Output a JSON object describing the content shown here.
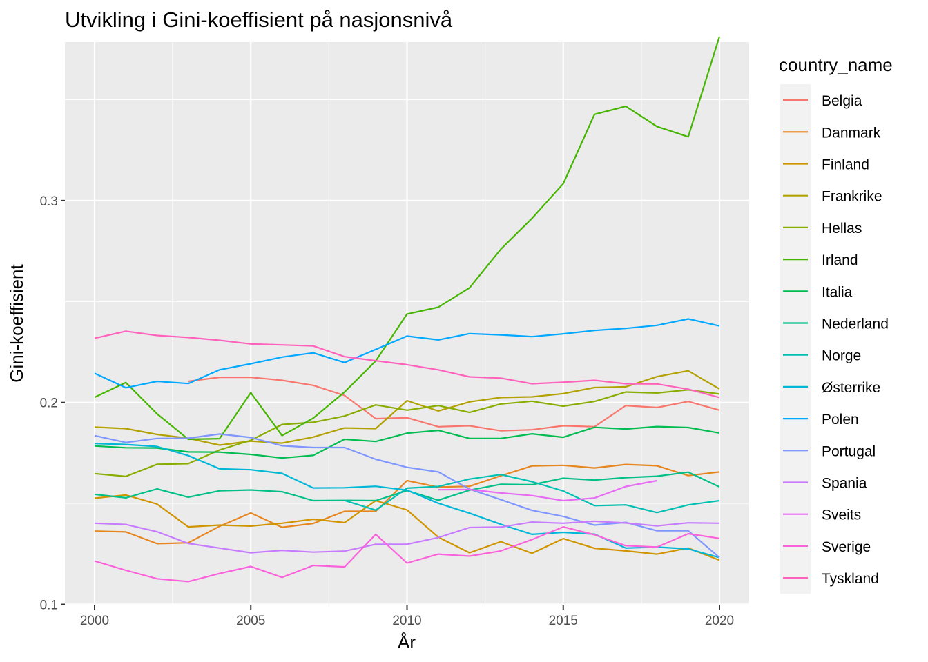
{
  "chart_data": {
    "type": "line",
    "title": "Utvikling i Gini-koeffisient på nasjonsnivå",
    "xlabel": "År",
    "ylabel": "Gini-koeffisient",
    "xlim": [
      1999.05,
      2020.95
    ],
    "ylim": [
      0.0995,
      0.3785
    ],
    "xticks": [
      2000,
      2005,
      2010,
      2015,
      2020
    ],
    "xtick_labels": [
      "2000",
      "2005",
      "2010",
      "2015",
      "2020"
    ],
    "yticks": [
      0.1,
      0.2,
      0.3
    ],
    "ytick_labels": [
      "0.1",
      "0.2",
      "0.3"
    ],
    "grid": true,
    "legend_title": "country_name",
    "legend_position": "right",
    "x": [
      2000,
      2001,
      2002,
      2003,
      2004,
      2005,
      2006,
      2007,
      2008,
      2009,
      2010,
      2011,
      2012,
      2013,
      2014,
      2015,
      2016,
      2017,
      2018,
      2019,
      2020
    ],
    "series": [
      {
        "name": "Belgia",
        "color": "#F8766D",
        "values": [
          null,
          null,
          null,
          0.2105,
          0.2125,
          0.2125,
          0.211,
          0.2085,
          0.2035,
          0.192,
          0.1925,
          0.188,
          0.1885,
          0.186,
          0.1865,
          0.1885,
          0.188,
          0.1985,
          0.1975,
          0.2005,
          0.1962
        ]
      },
      {
        "name": "Danmark",
        "color": "#E7851E",
        "values": [
          0.1363,
          0.1359,
          0.1301,
          0.1305,
          0.1387,
          0.1453,
          0.1382,
          0.1401,
          0.1461,
          0.1461,
          0.1613,
          0.1581,
          0.1585,
          0.1637,
          0.1686,
          0.1689,
          0.1676,
          0.1693,
          0.1687,
          0.1638,
          0.1656
        ]
      },
      {
        "name": "Finland",
        "color": "#D09400",
        "values": [
          0.1526,
          0.1542,
          0.1497,
          0.1384,
          0.1393,
          0.1388,
          0.1402,
          0.1422,
          0.1405,
          0.1514,
          0.1468,
          0.1333,
          0.1256,
          0.1311,
          0.1253,
          0.1326,
          0.1278,
          0.1265,
          0.1249,
          0.1279,
          0.1219
        ]
      },
      {
        "name": "Frankrike",
        "color": "#B2A100",
        "values": [
          0.1878,
          0.1871,
          0.1842,
          0.1823,
          0.1789,
          0.1809,
          0.1799,
          0.1829,
          0.1874,
          0.1871,
          0.2009,
          0.1958,
          0.2003,
          0.2025,
          0.2028,
          0.2044,
          0.2074,
          0.2078,
          0.2128,
          0.2157,
          0.2067
        ]
      },
      {
        "name": "Hellas",
        "color": "#89AC00",
        "values": [
          0.1648,
          0.1634,
          0.1694,
          0.1697,
          0.1765,
          0.1813,
          0.1891,
          0.1902,
          0.1933,
          0.1988,
          0.1962,
          0.1985,
          0.1951,
          0.1993,
          0.2006,
          0.1982,
          0.2005,
          0.2052,
          0.2047,
          0.2063,
          0.2042
        ]
      },
      {
        "name": "Irland",
        "color": "#45B500",
        "values": [
          0.2026,
          0.2099,
          0.1944,
          0.1818,
          0.1821,
          0.2049,
          0.1836,
          0.1923,
          0.2052,
          0.2206,
          0.2438,
          0.2472,
          0.2568,
          0.2759,
          0.2912,
          0.3084,
          0.3427,
          0.3467,
          0.3367,
          0.3316,
          0.3813
        ]
      },
      {
        "name": "Italia",
        "color": "#00BC51",
        "values": [
          0.1785,
          0.1776,
          0.1775,
          0.1755,
          0.1754,
          0.1743,
          0.1725,
          0.1738,
          0.1818,
          0.1807,
          0.1848,
          0.1862,
          0.1822,
          0.1822,
          0.1845,
          0.1828,
          0.1877,
          0.1869,
          0.1881,
          0.1876,
          0.1849
        ]
      },
      {
        "name": "Nederland",
        "color": "#00C087",
        "values": [
          0.1545,
          0.1528,
          0.1572,
          0.1531,
          0.1563,
          0.1567,
          0.1558,
          0.1514,
          0.1515,
          0.1514,
          0.1564,
          0.1516,
          0.1566,
          0.1595,
          0.1593,
          0.1625,
          0.1616,
          0.1628,
          0.1635,
          0.1655,
          0.1582
        ]
      },
      {
        "name": "Norge",
        "color": "#00C0B2",
        "values": [
          null,
          null,
          null,
          null,
          null,
          null,
          null,
          null,
          0.1515,
          0.1467,
          0.1576,
          0.1584,
          0.1621,
          0.1643,
          0.1608,
          0.1562,
          0.1489,
          0.1493,
          0.1455,
          0.1493,
          0.1514
        ]
      },
      {
        "name": "Østerrike",
        "color": "#00B7D8",
        "values": [
          0.1797,
          0.1792,
          0.1782,
          0.1737,
          0.1672,
          0.1667,
          0.1649,
          0.1577,
          0.1578,
          0.1585,
          0.1566,
          0.1501,
          0.1452,
          0.1397,
          0.1347,
          0.1357,
          0.1348,
          0.1279,
          0.1284,
          0.1275,
          0.1232
        ]
      },
      {
        "name": "Polen",
        "color": "#00A9FF",
        "values": [
          0.2145,
          0.2073,
          0.2105,
          0.2094,
          0.2162,
          0.2192,
          0.2225,
          0.2246,
          0.2198,
          0.2263,
          0.2329,
          0.231,
          0.2341,
          0.2335,
          0.2326,
          0.234,
          0.2357,
          0.2367,
          0.2382,
          0.2414,
          0.2379
        ]
      },
      {
        "name": "Portugal",
        "color": "#7F96FF",
        "values": [
          0.1836,
          0.1802,
          0.1822,
          0.1823,
          0.1844,
          0.1827,
          0.1786,
          0.1777,
          0.1777,
          0.1719,
          0.1679,
          0.1656,
          0.1571,
          0.1519,
          0.1466,
          0.1436,
          0.1393,
          0.1406,
          0.1365,
          0.1365,
          0.1232
        ]
      },
      {
        "name": "Spania",
        "color": "#C77CFF",
        "values": [
          0.1402,
          0.1396,
          0.136,
          0.1302,
          0.1279,
          0.1256,
          0.1268,
          0.1259,
          0.1264,
          0.1298,
          0.1298,
          0.1331,
          0.1381,
          0.1383,
          0.1408,
          0.1402,
          0.1412,
          0.1403,
          0.1389,
          0.1404,
          0.1402
        ]
      },
      {
        "name": "Sveits",
        "color": "#E76BF3",
        "values": [
          null,
          null,
          null,
          null,
          null,
          null,
          null,
          null,
          null,
          null,
          null,
          0.1568,
          0.1569,
          0.1552,
          0.1539,
          0.1514,
          0.1527,
          0.1584,
          0.1613,
          null,
          null
        ]
      },
      {
        "name": "Sverige",
        "color": "#FA62DB",
        "values": [
          0.1215,
          0.1169,
          0.1127,
          0.1113,
          0.1153,
          0.1188,
          0.1134,
          0.1193,
          0.1186,
          0.1347,
          0.1205,
          0.1249,
          0.1239,
          0.1265,
          0.1321,
          0.1384,
          0.1345,
          0.1291,
          0.1284,
          0.135,
          0.1327
        ]
      },
      {
        "name": "Tyskland",
        "color": "#FF62BC",
        "values": [
          0.2318,
          0.2353,
          0.2332,
          0.2322,
          0.2308,
          0.229,
          0.2285,
          0.228,
          0.2227,
          0.2207,
          0.2187,
          0.2162,
          0.2127,
          0.2121,
          0.2093,
          0.21,
          0.211,
          0.2093,
          0.2092,
          0.2066,
          0.2025
        ]
      }
    ]
  }
}
